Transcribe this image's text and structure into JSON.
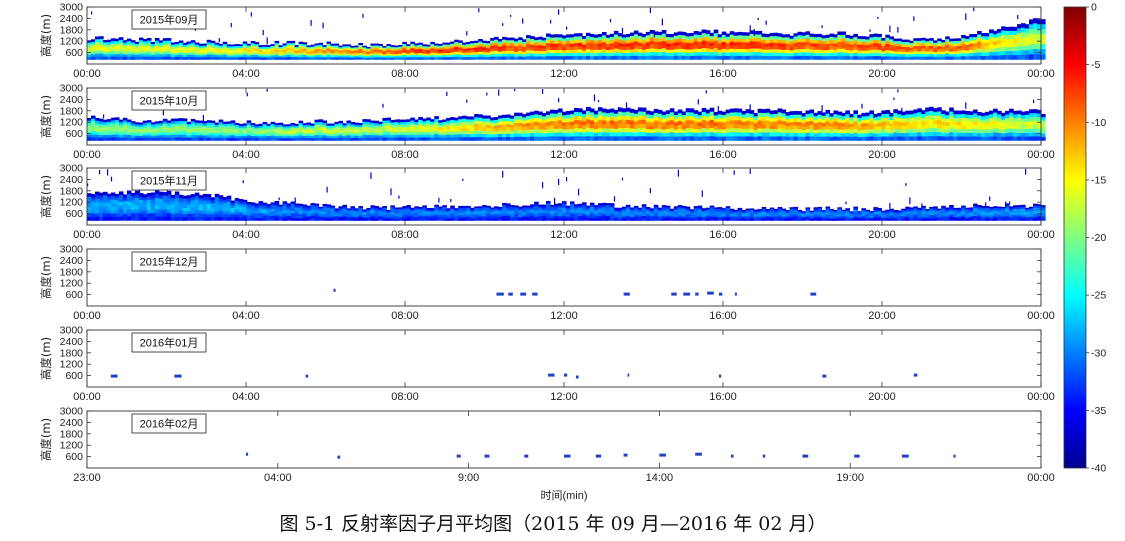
{
  "chart_data": {
    "type": "heatmap",
    "ylabel": "高度(m)",
    "xlabel": "时间(min)",
    "caption": "图 5-1  反射率因子月平均图（2015 年 09 月—2016 年 02 月）",
    "ylim": [
      0,
      3000
    ],
    "yticks": [
      "600",
      "1200",
      "1800",
      "2400",
      "3000"
    ],
    "colorbar": {
      "range": [
        -40,
        0
      ],
      "ticks": [
        "0",
        "-5",
        "-10",
        "-15",
        "-20",
        "-25",
        "-30",
        "-35",
        "-40"
      ],
      "colormap": "jet"
    },
    "panels": [
      {
        "month": "2015年09月",
        "xticks": [
          "00:00",
          "04:00",
          "08:00",
          "12:00",
          "16:00",
          "20:00",
          "00:00"
        ],
        "echo_top_m": [
          1350,
          1300,
          1250,
          1150,
          1100,
          1100,
          1050,
          1000,
          1100,
          1200,
          1350,
          1500,
          1600,
          1650,
          1700,
          1700,
          1650,
          1600,
          1650,
          1500,
          1300,
          1450,
          1900,
          2400
        ],
        "intensity": [
          0.55,
          0.55,
          0.55,
          0.55,
          0.6,
          0.65,
          0.7,
          0.75,
          0.8,
          0.8,
          0.78,
          0.78,
          0.8,
          0.8,
          0.8,
          0.8,
          0.8,
          0.78,
          0.78,
          0.78,
          0.75,
          0.75,
          0.6,
          0.5
        ]
      },
      {
        "month": "2015年10月",
        "xticks": [
          "00:00",
          "04:00",
          "08:00",
          "12:00",
          "16:00",
          "20:00",
          "00:00"
        ],
        "echo_top_m": [
          1500,
          1300,
          1300,
          1250,
          1200,
          1200,
          1250,
          1300,
          1350,
          1500,
          1550,
          1800,
          1900,
          1900,
          1850,
          1850,
          1800,
          1800,
          1750,
          1700,
          1900,
          1850,
          1800,
          1750
        ],
        "intensity": [
          0.45,
          0.45,
          0.45,
          0.45,
          0.45,
          0.5,
          0.5,
          0.5,
          0.55,
          0.6,
          0.65,
          0.7,
          0.72,
          0.72,
          0.72,
          0.72,
          0.7,
          0.7,
          0.7,
          0.65,
          0.6,
          0.6,
          0.55,
          0.5
        ]
      },
      {
        "month": "2015年11月",
        "xticks": [
          "00:00",
          "04:00",
          "08:00",
          "12:00",
          "16:00",
          "20:00",
          "00:00"
        ],
        "echo_top_m": [
          1700,
          1700,
          1700,
          1550,
          1250,
          1100,
          950,
          900,
          950,
          1000,
          1050,
          1150,
          1100,
          1000,
          950,
          900,
          850,
          850,
          850,
          850,
          900,
          1000,
          1050,
          1000
        ],
        "intensity": [
          0.2,
          0.2,
          0.2,
          0.2,
          0.18,
          0.15,
          0.15,
          0.15,
          0.15,
          0.15,
          0.15,
          0.15,
          0.15,
          0.15,
          0.15,
          0.15,
          0.15,
          0.15,
          0.15,
          0.15,
          0.15,
          0.15,
          0.18,
          0.18
        ]
      },
      {
        "month": "2015年12月",
        "xticks": [
          "00:00",
          "04:00",
          "08:00",
          "12:00",
          "16:00",
          "20:00",
          "00:00"
        ],
        "sparse_echoes": [
          {
            "t_h": 6.2,
            "z": 800
          },
          {
            "t_h": 10.3,
            "z": 600
          },
          {
            "t_h": 10.6,
            "z": 600
          },
          {
            "t_h": 10.9,
            "z": 600
          },
          {
            "t_h": 11.2,
            "z": 600
          },
          {
            "t_h": 13.5,
            "z": 600
          },
          {
            "t_h": 14.7,
            "z": 600
          },
          {
            "t_h": 15.0,
            "z": 600
          },
          {
            "t_h": 15.3,
            "z": 600
          },
          {
            "t_h": 15.6,
            "z": 650
          },
          {
            "t_h": 15.9,
            "z": 600
          },
          {
            "t_h": 16.3,
            "z": 600
          },
          {
            "t_h": 18.2,
            "z": 600
          }
        ]
      },
      {
        "month": "2016年01月",
        "xticks": [
          "00:00",
          "04:00",
          "08:00",
          "12:00",
          "16:00",
          "20:00",
          "00:00"
        ],
        "sparse_echoes": [
          {
            "t_h": 0.6,
            "z": 550
          },
          {
            "t_h": 2.2,
            "z": 550
          },
          {
            "t_h": 5.5,
            "z": 550
          },
          {
            "t_h": 11.6,
            "z": 600
          },
          {
            "t_h": 12.0,
            "z": 600
          },
          {
            "t_h": 12.3,
            "z": 500
          },
          {
            "t_h": 13.6,
            "z": 600
          },
          {
            "t_h": 15.9,
            "z": 550
          },
          {
            "t_h": 18.5,
            "z": 550
          },
          {
            "t_h": 20.8,
            "z": 600
          }
        ]
      },
      {
        "month": "2016年02月",
        "xticks": [
          "23:00",
          "04:00",
          "9:00",
          "14:00",
          "19:00",
          "00:00"
        ],
        "sparse_echoes": [
          {
            "t_h": 4.0,
            "z": 700
          },
          {
            "t_h": 6.3,
            "z": 550
          },
          {
            "t_h": 9.3,
            "z": 600
          },
          {
            "t_h": 10.0,
            "z": 600
          },
          {
            "t_h": 11.0,
            "z": 600
          },
          {
            "t_h": 12.0,
            "z": 600
          },
          {
            "t_h": 12.8,
            "z": 600
          },
          {
            "t_h": 13.5,
            "z": 650
          },
          {
            "t_h": 14.4,
            "z": 650
          },
          {
            "t_h": 15.3,
            "z": 700
          },
          {
            "t_h": 16.2,
            "z": 600
          },
          {
            "t_h": 17.0,
            "z": 600
          },
          {
            "t_h": 18.0,
            "z": 600
          },
          {
            "t_h": 19.3,
            "z": 600
          },
          {
            "t_h": 20.5,
            "z": 600
          },
          {
            "t_h": 21.8,
            "z": 600
          }
        ]
      }
    ]
  }
}
